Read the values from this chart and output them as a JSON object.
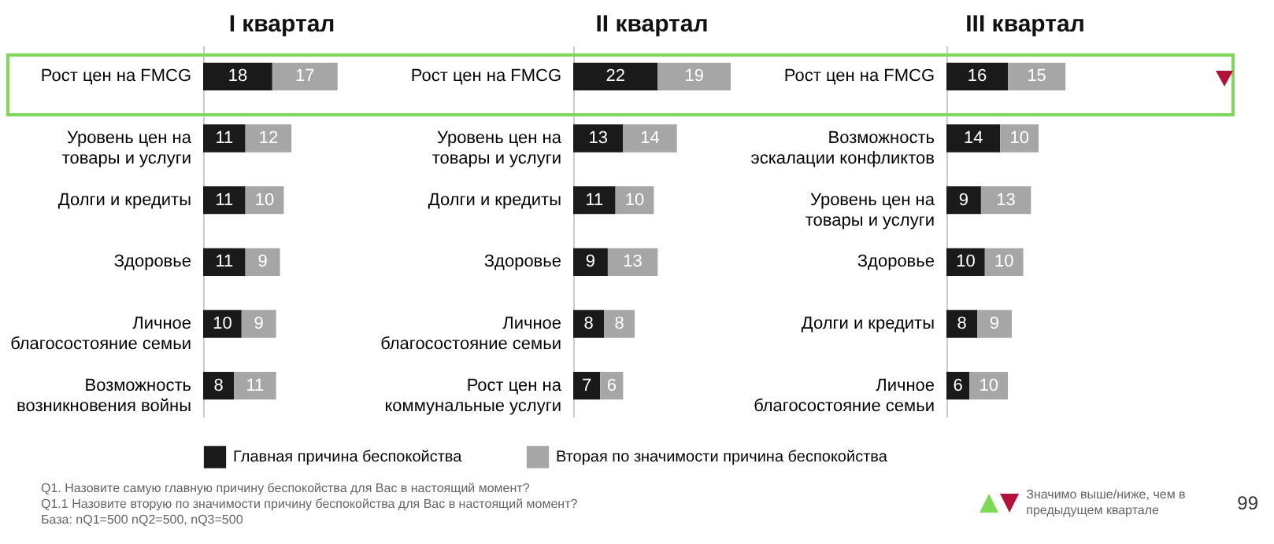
{
  "chart_data": [
    {
      "type": "bar",
      "orientation": "horizontal",
      "stacked": true,
      "data_labels": true,
      "legend": "bottom",
      "title": "I квартал",
      "categories": [
        "Рост цен на FMCG",
        "Уровень цен на товары и услуги",
        "Долги и кредиты",
        "Здоровье",
        "Личное благосостояние семьи",
        "Возможность возникновения войны"
      ],
      "series": [
        {
          "name": "Главная причина беспокойства",
          "color": "#1a1a1a",
          "values": [
            18,
            11,
            11,
            11,
            10,
            8
          ]
        },
        {
          "name": "Вторая по значимости причина беспокойства",
          "color": "#a6a6a6",
          "values": [
            17,
            12,
            10,
            9,
            9,
            11
          ]
        }
      ],
      "annotations": [
        "Q1. Назовите самую главную причину беспокойства для  Вас в настоящий момент?",
        "Q1.1 Назовите вторую по значимости причину беспокойства для  Вас в настоящий момент?",
        "База: nQ1=500 nQ2=500, nQ3=500"
      ]
    },
    {
      "type": "bar",
      "orientation": "horizontal",
      "stacked": true,
      "data_labels": true,
      "legend": "bottom",
      "title": "II квартал",
      "categories": [
        "Рост цен на FMCG",
        "Уровень цен на товары и услуги",
        "Долги и кредиты",
        "Здоровье",
        "Личное благосостояние семьи",
        "Рост цен на коммунальные услуги"
      ],
      "series": [
        {
          "name": "Главная причина беспокойства",
          "color": "#1a1a1a",
          "values": [
            22,
            13,
            11,
            9,
            8,
            7
          ]
        },
        {
          "name": "Вторая по значимости причина беспокойства",
          "color": "#a6a6a6",
          "values": [
            19,
            14,
            10,
            13,
            8,
            6
          ]
        }
      ]
    },
    {
      "type": "bar",
      "orientation": "horizontal",
      "stacked": true,
      "data_labels": true,
      "legend": "bottom",
      "title": "III квартал",
      "categories": [
        "Рост цен на FMCG",
        "Возможность эскалации конфликтов",
        "Уровень цен на товары и услуги",
        "Здоровье",
        "Долги и кредиты",
        "Личное благосостояние семьи"
      ],
      "series": [
        {
          "name": "Главная причина беспокойства",
          "color": "#1a1a1a",
          "values": [
            16,
            14,
            9,
            10,
            8,
            6
          ]
        },
        {
          "name": "Вторая по значимости причина беспокойства",
          "color": "#a6a6a6",
          "values": [
            15,
            10,
            13,
            10,
            9,
            10
          ]
        }
      ],
      "annotations": [
        "Значимо выше/ниже, чем в предыдущем квартале",
        "99"
      ]
    }
  ]
}
